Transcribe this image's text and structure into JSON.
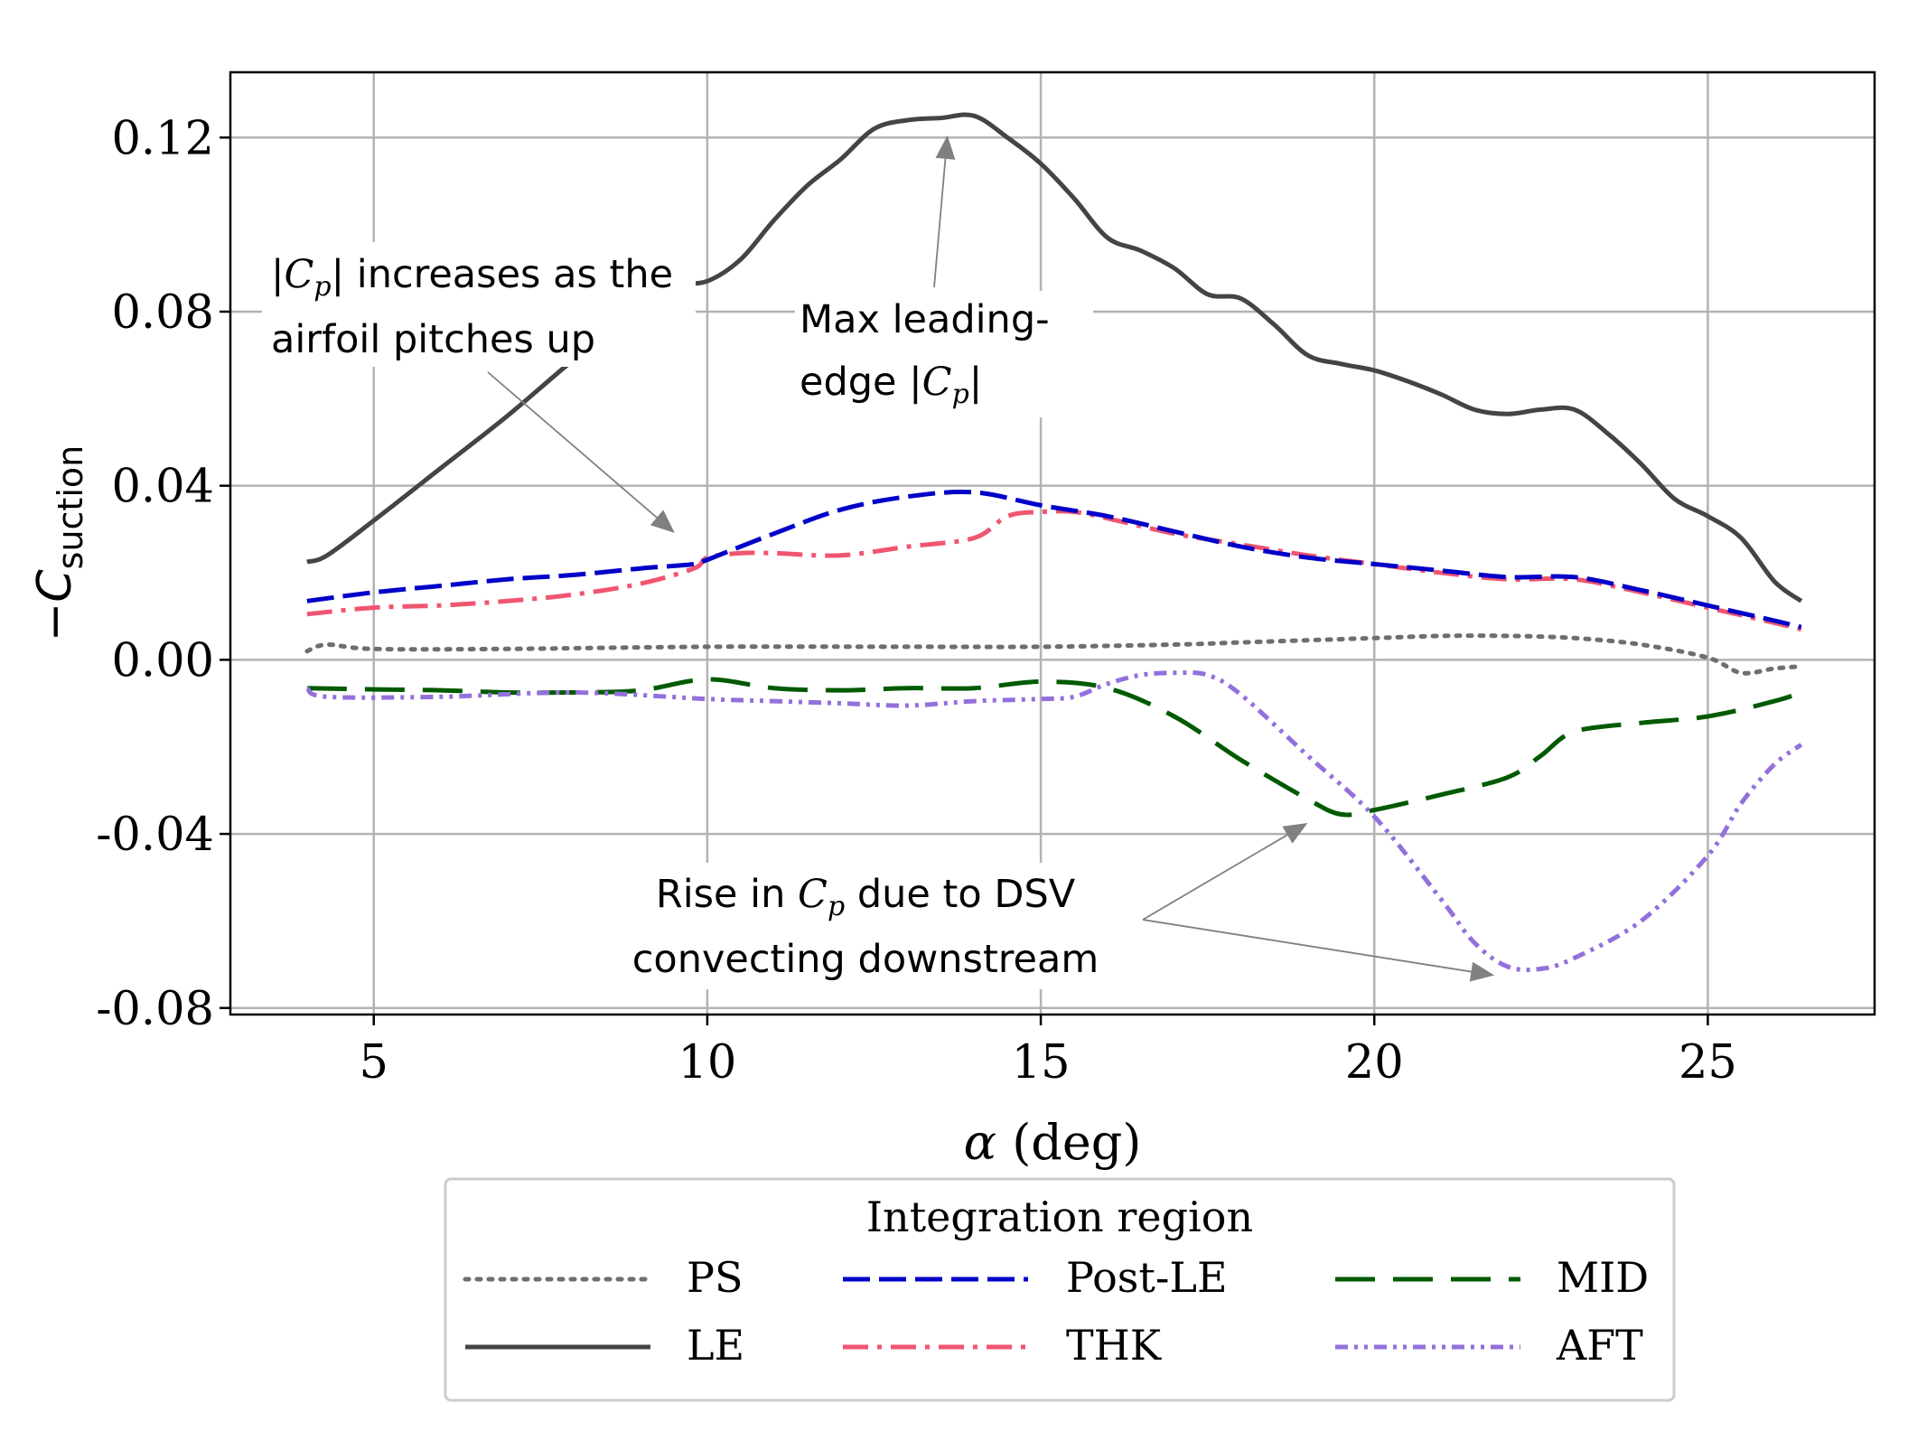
{
  "chart_data": {
    "type": "line",
    "xlabel": "α (deg)",
    "ylabel_main": "−C",
    "ylabel_sub": "suction",
    "xlim": [
      2.85,
      27.5
    ],
    "ylim": [
      -0.0815,
      0.135
    ],
    "x_ticks": [
      5,
      10,
      15,
      20,
      25
    ],
    "x_tick_labels": [
      "5",
      "10",
      "15",
      "20",
      "25"
    ],
    "y_ticks": [
      -0.08,
      -0.04,
      0.0,
      0.04,
      0.08,
      0.12
    ],
    "y_tick_labels": [
      "-0.08",
      "-0.04",
      "0.00",
      "0.04",
      "0.08",
      "0.12"
    ],
    "grid": true,
    "legend": {
      "title": "Integration region",
      "placement": "below-center",
      "columns": 3
    },
    "series": [
      {
        "name": "PS",
        "color": "#6e6e6e",
        "style": "dotted",
        "points": [
          [
            4,
            0.002
          ],
          [
            4.3,
            0.0035
          ],
          [
            5,
            0.0025
          ],
          [
            7,
            0.0025
          ],
          [
            10,
            0.003
          ],
          [
            13,
            0.003
          ],
          [
            15,
            0.003
          ],
          [
            17,
            0.0035
          ],
          [
            18,
            0.004
          ],
          [
            19,
            0.0045
          ],
          [
            20,
            0.005
          ],
          [
            21,
            0.0055
          ],
          [
            22,
            0.0055
          ],
          [
            23,
            0.005
          ],
          [
            24,
            0.0035
          ],
          [
            25,
            0.0005
          ],
          [
            25.5,
            -0.003
          ],
          [
            26,
            -0.002
          ],
          [
            26.4,
            -0.0015
          ]
        ]
      },
      {
        "name": "LE",
        "color": "#444444",
        "style": "solid",
        "points": [
          [
            4,
            0.0225
          ],
          [
            4.3,
            0.024
          ],
          [
            5,
            0.032
          ],
          [
            6,
            0.044
          ],
          [
            7,
            0.056
          ],
          [
            8,
            0.069
          ],
          [
            9,
            0.081
          ],
          [
            9.5,
            0.086
          ],
          [
            10,
            0.087
          ],
          [
            10.5,
            0.092
          ],
          [
            11,
            0.101
          ],
          [
            11.5,
            0.109
          ],
          [
            12,
            0.115
          ],
          [
            12.5,
            0.122
          ],
          [
            13,
            0.124
          ],
          [
            13.5,
            0.1245
          ],
          [
            14,
            0.125
          ],
          [
            14.5,
            0.12
          ],
          [
            15,
            0.114
          ],
          [
            15.5,
            0.106
          ],
          [
            16,
            0.097
          ],
          [
            16.5,
            0.094
          ],
          [
            17,
            0.09
          ],
          [
            17.5,
            0.084
          ],
          [
            18,
            0.083
          ],
          [
            18.5,
            0.077
          ],
          [
            19,
            0.07
          ],
          [
            19.5,
            0.068
          ],
          [
            20,
            0.0665
          ],
          [
            20.5,
            0.064
          ],
          [
            21,
            0.061
          ],
          [
            21.5,
            0.0575
          ],
          [
            22,
            0.0565
          ],
          [
            22.5,
            0.0575
          ],
          [
            23,
            0.0575
          ],
          [
            23.5,
            0.052
          ],
          [
            24,
            0.045
          ],
          [
            24.5,
            0.037
          ],
          [
            25,
            0.033
          ],
          [
            25.5,
            0.028
          ],
          [
            26,
            0.018
          ],
          [
            26.4,
            0.0135
          ]
        ]
      },
      {
        "name": "Post-LE",
        "color": "#0000c8",
        "style": "dashed",
        "points": [
          [
            4,
            0.0135
          ],
          [
            5,
            0.0155
          ],
          [
            6,
            0.017
          ],
          [
            7,
            0.0185
          ],
          [
            8,
            0.0195
          ],
          [
            9,
            0.021
          ],
          [
            9.8,
            0.022
          ],
          [
            10,
            0.023
          ],
          [
            11,
            0.029
          ],
          [
            12,
            0.0345
          ],
          [
            13,
            0.0375
          ],
          [
            14,
            0.0385
          ],
          [
            15,
            0.0355
          ],
          [
            16,
            0.033
          ],
          [
            17,
            0.0295
          ],
          [
            18,
            0.026
          ],
          [
            19,
            0.0235
          ],
          [
            20,
            0.022
          ],
          [
            21,
            0.0205
          ],
          [
            22,
            0.019
          ],
          [
            23,
            0.019
          ],
          [
            24,
            0.016
          ],
          [
            25,
            0.0125
          ],
          [
            26,
            0.009
          ],
          [
            26.4,
            0.0075
          ]
        ]
      },
      {
        "name": "THK",
        "color": "#f05570",
        "style": "dashdot",
        "points": [
          [
            4,
            0.0105
          ],
          [
            5,
            0.012
          ],
          [
            6,
            0.0125
          ],
          [
            7,
            0.0135
          ],
          [
            8,
            0.015
          ],
          [
            9,
            0.0175
          ],
          [
            9.8,
            0.021
          ],
          [
            10,
            0.0235
          ],
          [
            10.5,
            0.0245
          ],
          [
            11,
            0.0245
          ],
          [
            12,
            0.024
          ],
          [
            13,
            0.026
          ],
          [
            14,
            0.028
          ],
          [
            14.5,
            0.033
          ],
          [
            15,
            0.034
          ],
          [
            15.5,
            0.034
          ],
          [
            16,
            0.0325
          ],
          [
            17,
            0.029
          ],
          [
            18,
            0.0265
          ],
          [
            19,
            0.024
          ],
          [
            20,
            0.022
          ],
          [
            21,
            0.02
          ],
          [
            22,
            0.0185
          ],
          [
            23,
            0.0185
          ],
          [
            24,
            0.0155
          ],
          [
            25,
            0.012
          ],
          [
            26,
            0.0085
          ],
          [
            26.4,
            0.007
          ]
        ]
      },
      {
        "name": "MID",
        "color": "#005a00",
        "style": "longdash",
        "points": [
          [
            4,
            -0.0065
          ],
          [
            5,
            -0.0068
          ],
          [
            6,
            -0.007
          ],
          [
            7,
            -0.0075
          ],
          [
            8,
            -0.0075
          ],
          [
            9,
            -0.007
          ],
          [
            10,
            -0.0045
          ],
          [
            11,
            -0.0065
          ],
          [
            12,
            -0.007
          ],
          [
            13,
            -0.0065
          ],
          [
            14,
            -0.0065
          ],
          [
            15,
            -0.005
          ],
          [
            16,
            -0.0065
          ],
          [
            17,
            -0.013
          ],
          [
            18,
            -0.023
          ],
          [
            19,
            -0.032
          ],
          [
            19.5,
            -0.0355
          ],
          [
            20,
            -0.0345
          ],
          [
            21,
            -0.031
          ],
          [
            22,
            -0.027
          ],
          [
            22.5,
            -0.022
          ],
          [
            23,
            -0.0165
          ],
          [
            24,
            -0.0145
          ],
          [
            25,
            -0.013
          ],
          [
            26,
            -0.0095
          ],
          [
            26.4,
            -0.0075
          ]
        ]
      },
      {
        "name": "AFT",
        "color": "#9370db",
        "style": "dashdotdot",
        "points": [
          [
            4,
            -0.0065
          ],
          [
            4.3,
            -0.0085
          ],
          [
            6,
            -0.0085
          ],
          [
            8,
            -0.0075
          ],
          [
            10,
            -0.009
          ],
          [
            11,
            -0.0095
          ],
          [
            12,
            -0.01
          ],
          [
            13,
            -0.0105
          ],
          [
            14,
            -0.0095
          ],
          [
            15,
            -0.009
          ],
          [
            15.5,
            -0.0085
          ],
          [
            16,
            -0.0055
          ],
          [
            16.5,
            -0.0035
          ],
          [
            17,
            -0.003
          ],
          [
            17.5,
            -0.0035
          ],
          [
            18,
            -0.008
          ],
          [
            19,
            -0.022
          ],
          [
            20,
            -0.036
          ],
          [
            21,
            -0.055
          ],
          [
            21.5,
            -0.065
          ],
          [
            22,
            -0.0705
          ],
          [
            22.5,
            -0.071
          ],
          [
            23,
            -0.0685
          ],
          [
            24,
            -0.06
          ],
          [
            25,
            -0.045
          ],
          [
            25.5,
            -0.033
          ],
          [
            26,
            -0.024
          ],
          [
            26.4,
            -0.0195
          ]
        ]
      }
    ],
    "annotations": [
      {
        "lines": [
          "|C",
          "| increases as the",
          "airfoil pitches up"
        ],
        "line1_prefix": "|",
        "line1_italic": "C",
        "line1_sub": "p",
        "line1_rest": "| increases as the",
        "line2": "airfoil pitches up",
        "arrow_target": [
          9.7,
          0.03
        ]
      },
      {
        "line1": "Max leading-",
        "line2_prefix": "edge |",
        "line2_italic": "C",
        "line2_sub": "p",
        "line2_rest": "|",
        "arrow_target": [
          13.6,
          0.1205
        ]
      },
      {
        "line1_prefix": "Rise in ",
        "line1_italic": "C",
        "line1_sub": "p",
        "line1_rest": " due to DSV",
        "line2": "convecting downstream",
        "arrow_targets": [
          [
            19.0,
            -0.0375
          ],
          [
            21.8,
            -0.0725
          ]
        ]
      }
    ]
  }
}
